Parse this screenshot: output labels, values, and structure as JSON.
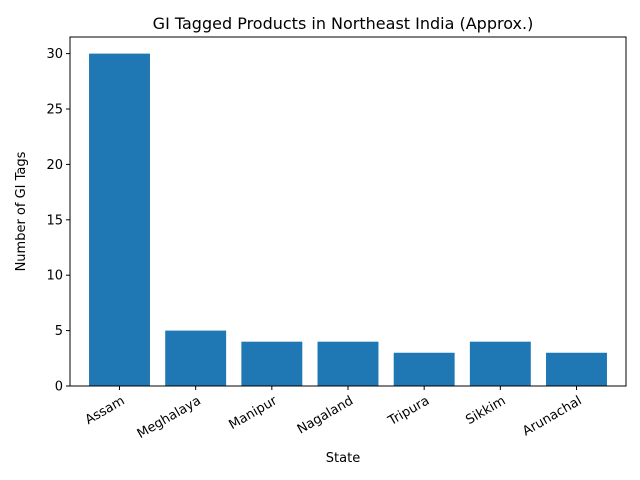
{
  "chart_data": {
    "type": "bar",
    "title": "GI Tagged Products in Northeast India (Approx.)",
    "xlabel": "State",
    "ylabel": "Number of GI Tags",
    "categories": [
      "Assam",
      "Meghalaya",
      "Manipur",
      "Nagaland",
      "Tripura",
      "Sikkim",
      "Arunachal"
    ],
    "values": [
      30,
      5,
      4,
      4,
      3,
      4,
      3
    ],
    "ylim": [
      0,
      31.5
    ],
    "yticks": [
      0,
      5,
      10,
      15,
      20,
      25,
      30
    ],
    "bar_color": "#1f77b4",
    "grid": false,
    "legend": "none"
  }
}
